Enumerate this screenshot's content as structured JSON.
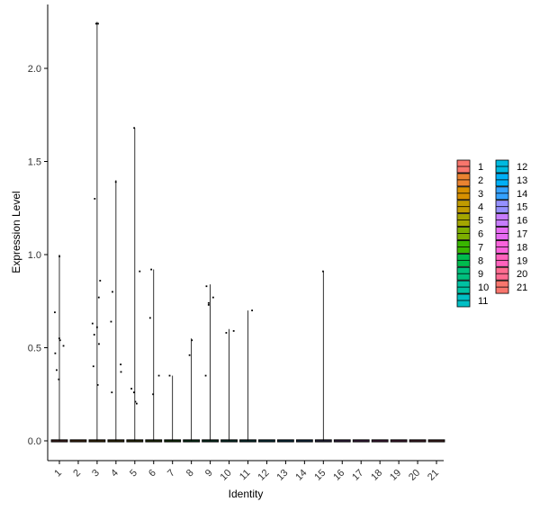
{
  "chart_data": {
    "type": "violin",
    "title": "",
    "xlabel": "Identity",
    "ylabel": "Expression Level",
    "ylim": [
      0,
      2.3
    ],
    "yticks": [
      "0.0",
      "0.5",
      "1.0",
      "1.5",
      "2.0"
    ],
    "categories": [
      "1",
      "2",
      "3",
      "4",
      "5",
      "6",
      "7",
      "8",
      "9",
      "10",
      "11",
      "12",
      "13",
      "14",
      "15",
      "16",
      "17",
      "18",
      "19",
      "20",
      "21"
    ],
    "colors": [
      "#F8766D",
      "#EA8331",
      "#D89000",
      "#C09B00",
      "#A3A500",
      "#7CAE00",
      "#39B600",
      "#00BB4E",
      "#00BF7D",
      "#00C1A3",
      "#00BFC4",
      "#00BAE0",
      "#00B0F6",
      "#35A2FF",
      "#9590FF",
      "#C77CFF",
      "#E76BF3",
      "#FA62DB",
      "#FF62BC",
      "#FF6C91",
      "#F8766D"
    ],
    "max_values": [
      1.0,
      0,
      2.25,
      1.4,
      1.68,
      0.92,
      0.35,
      0.55,
      0.84,
      0.6,
      0.7,
      0,
      0,
      0,
      0.91,
      0,
      0,
      0,
      0,
      0,
      0
    ],
    "points": [
      [
        0.55,
        0.54,
        0.47,
        0.38,
        0.33,
        0.99,
        0.69,
        0.51
      ],
      [],
      [
        2.24,
        2.24,
        1.3,
        0.86,
        0.77,
        0.63,
        0.61,
        0.57,
        0.52,
        0.4,
        0.3
      ],
      [
        1.39,
        0.8,
        0.64,
        0.41,
        0.37,
        0.26
      ],
      [
        1.68,
        0.91,
        0.28,
        0.26,
        0.21,
        0.2
      ],
      [
        0.92,
        0.66,
        0.35,
        0.25
      ],
      [
        0.35
      ],
      [
        0.54,
        0.46
      ],
      [
        0.83,
        0.77,
        0.74,
        0.73,
        0.35
      ],
      [
        0.59,
        0.58
      ],
      [
        0.7
      ],
      [],
      [],
      [],
      [
        0.91
      ],
      [],
      [],
      [],
      [],
      [],
      []
    ],
    "legend": {
      "position": "right",
      "col1": [
        "1",
        "2",
        "3",
        "4",
        "5",
        "6",
        "7",
        "8",
        "9",
        "10",
        "11"
      ],
      "col2": [
        "12",
        "13",
        "14",
        "15",
        "16",
        "17",
        "18",
        "19",
        "20",
        "21"
      ]
    }
  }
}
